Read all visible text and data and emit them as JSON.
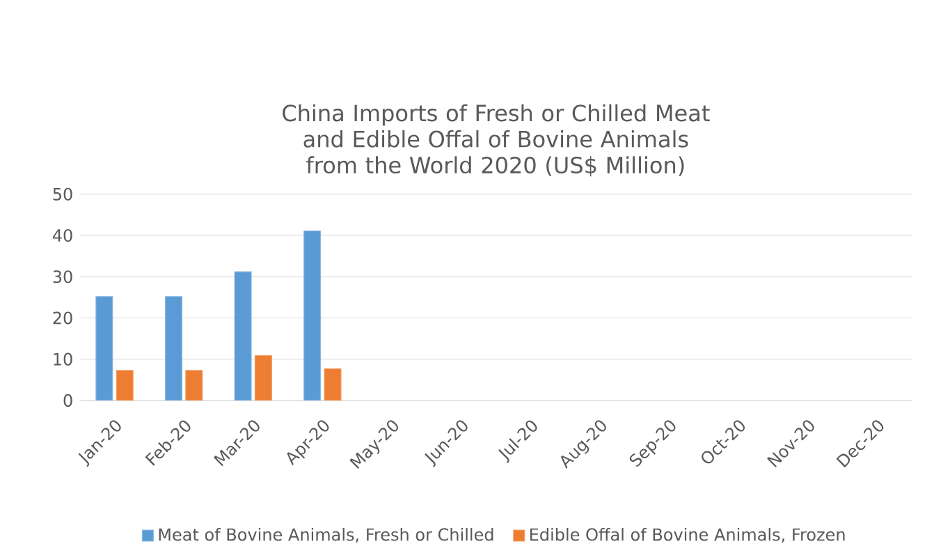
{
  "chart_data": {
    "type": "bar",
    "title": "China Imports of Fresh or Chilled Meat and Edible Offal of Bovine Animals from the World 2020 (US$ Million)",
    "categories": [
      "Jan-20",
      "Feb-20",
      "Mar-20",
      "Apr-20",
      "May-20",
      "Jun-20",
      "Jul-20",
      "Aug-20",
      "Sep-20",
      "Oct-20",
      "Nov-20",
      "Dec-20"
    ],
    "series": [
      {
        "name": "Meat of Bovine Animals, Fresh or Chilled",
        "color": "#5b9bd5",
        "values": [
          25.2,
          25.2,
          31.2,
          41.1,
          null,
          null,
          null,
          null,
          null,
          null,
          null,
          null
        ]
      },
      {
        "name": "Edible Offal of Bovine Animals, Frozen",
        "color": "#ed7d31",
        "values": [
          7.3,
          7.3,
          10.9,
          7.7,
          null,
          null,
          null,
          null,
          null,
          null,
          null,
          null
        ]
      }
    ],
    "ylim": [
      0,
      50
    ],
    "yticks": [
      0,
      10,
      20,
      30,
      40,
      50
    ],
    "grid": "y",
    "legend": "bottom"
  }
}
